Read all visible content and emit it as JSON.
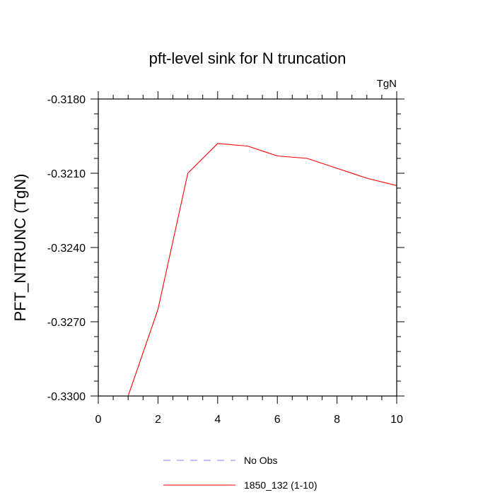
{
  "chart_data": {
    "type": "line",
    "title": "pft-level sink for N truncation",
    "units_label": "TgN",
    "ylabel": "PFT_NTRUNC  (TgN)",
    "xlabel": "",
    "xlim": [
      0,
      10
    ],
    "ylim": [
      -0.33,
      -0.318
    ],
    "xticks": [
      0,
      2,
      4,
      6,
      8,
      10
    ],
    "xtick_labels": [
      "0",
      "2",
      "4",
      "6",
      "8",
      "10"
    ],
    "yticks": [
      -0.318,
      -0.321,
      -0.324,
      -0.327,
      -0.33
    ],
    "ytick_labels": [
      "-0.3180",
      "-0.3210",
      "-0.3240",
      "-0.3270",
      "-0.3300"
    ],
    "grid": false,
    "legend_position": "bottom",
    "series": [
      {
        "name": "No Obs",
        "color": "#8080ff",
        "dashed": true,
        "x": [],
        "values": []
      },
      {
        "name": "1850_132 (1-10)",
        "color": "#ff0000",
        "dashed": false,
        "x": [
          1,
          2,
          3,
          4,
          5,
          6,
          7,
          8,
          9,
          10
        ],
        "values": [
          -0.33,
          -0.3265,
          -0.321,
          -0.3198,
          -0.3199,
          -0.3203,
          -0.3204,
          -0.3208,
          -0.3212,
          -0.3215
        ]
      }
    ]
  }
}
